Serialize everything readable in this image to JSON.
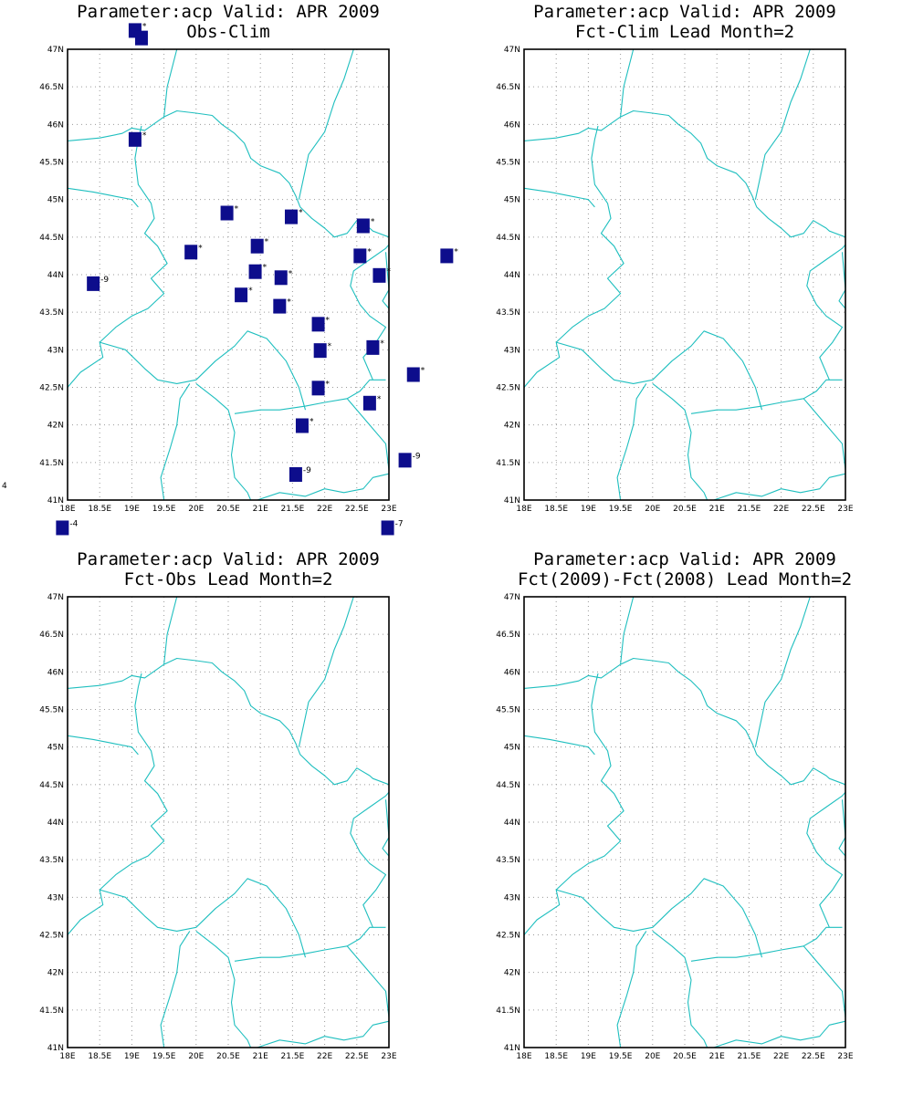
{
  "panels": [
    {
      "title_line1": "Parameter:acp Valid: APR 2009",
      "title_line2": "Obs-Clim",
      "stations": [
        {
          "lon": 19.05,
          "lat": 47.25,
          "label": "*"
        },
        {
          "lon": 19.15,
          "lat": 47.15,
          "label": ""
        },
        {
          "lon": 19.05,
          "lat": 45.8,
          "label": "*"
        },
        {
          "lon": 20.48,
          "lat": 44.82,
          "label": "*"
        },
        {
          "lon": 21.48,
          "lat": 44.77,
          "label": "*"
        },
        {
          "lon": 22.6,
          "lat": 44.65,
          "label": "*"
        },
        {
          "lon": 20.95,
          "lat": 44.38,
          "label": "*"
        },
        {
          "lon": 19.92,
          "lat": 44.3,
          "label": "*"
        },
        {
          "lon": 22.55,
          "lat": 44.25,
          "label": "*"
        },
        {
          "lon": 23.9,
          "lat": 44.25,
          "label": "*"
        },
        {
          "lon": 20.92,
          "lat": 44.04,
          "label": "*"
        },
        {
          "lon": 21.32,
          "lat": 43.96,
          "label": "*"
        },
        {
          "lon": 22.85,
          "lat": 43.99,
          "label": "*"
        },
        {
          "lon": 18.4,
          "lat": 43.88,
          "label": "-9"
        },
        {
          "lon": 20.7,
          "lat": 43.73,
          "label": "*"
        },
        {
          "lon": 21.3,
          "lat": 43.58,
          "label": "*"
        },
        {
          "lon": 21.9,
          "lat": 43.34,
          "label": "*"
        },
        {
          "lon": 22.75,
          "lat": 43.03,
          "label": "*"
        },
        {
          "lon": 21.93,
          "lat": 42.99,
          "label": "*"
        },
        {
          "lon": 23.38,
          "lat": 42.67,
          "label": "*"
        },
        {
          "lon": 21.9,
          "lat": 42.49,
          "label": "*"
        },
        {
          "lon": 22.7,
          "lat": 42.29,
          "label": "*"
        },
        {
          "lon": 21.65,
          "lat": 41.99,
          "label": "*"
        },
        {
          "lon": 23.25,
          "lat": 41.53,
          "label": "-9"
        },
        {
          "lon": 21.55,
          "lat": 41.34,
          "label": "-9"
        },
        {
          "lon": 17.92,
          "lat": 40.63,
          "label": "-4"
        },
        {
          "lon": 22.98,
          "lat": 40.63,
          "label": "-7"
        }
      ],
      "side_mark": "4"
    },
    {
      "title_line1": "Parameter:acp Valid: APR 2009",
      "title_line2": "Fct-Clim Lead Month=2",
      "stations": []
    },
    {
      "title_line1": "Parameter:acp Valid: APR 2009",
      "title_line2": "Fct-Obs Lead Month=2",
      "stations": []
    },
    {
      "title_line1": "Parameter:acp Valid: APR 2009",
      "title_line2": "Fct(2009)-Fct(2008) Lead Month=2",
      "stations": []
    }
  ],
  "axes": {
    "lon_ticks": [
      "18E",
      "18.5E",
      "19E",
      "19.5E",
      "20E",
      "20.5E",
      "21E",
      "21.5E",
      "22E",
      "22.5E",
      "23E"
    ],
    "lat_ticks": [
      "41N",
      "41.5N",
      "42N",
      "42.5N",
      "43N",
      "43.5N",
      "44N",
      "44.5N",
      "45N",
      "45.5N",
      "46N",
      "46.5N",
      "47N"
    ],
    "lon_range": [
      18,
      23
    ],
    "lat_range": [
      41,
      47
    ]
  },
  "colors": {
    "border": "#1fbfbf",
    "station": "#0d0d8c",
    "grid": "#9a9a9a"
  }
}
